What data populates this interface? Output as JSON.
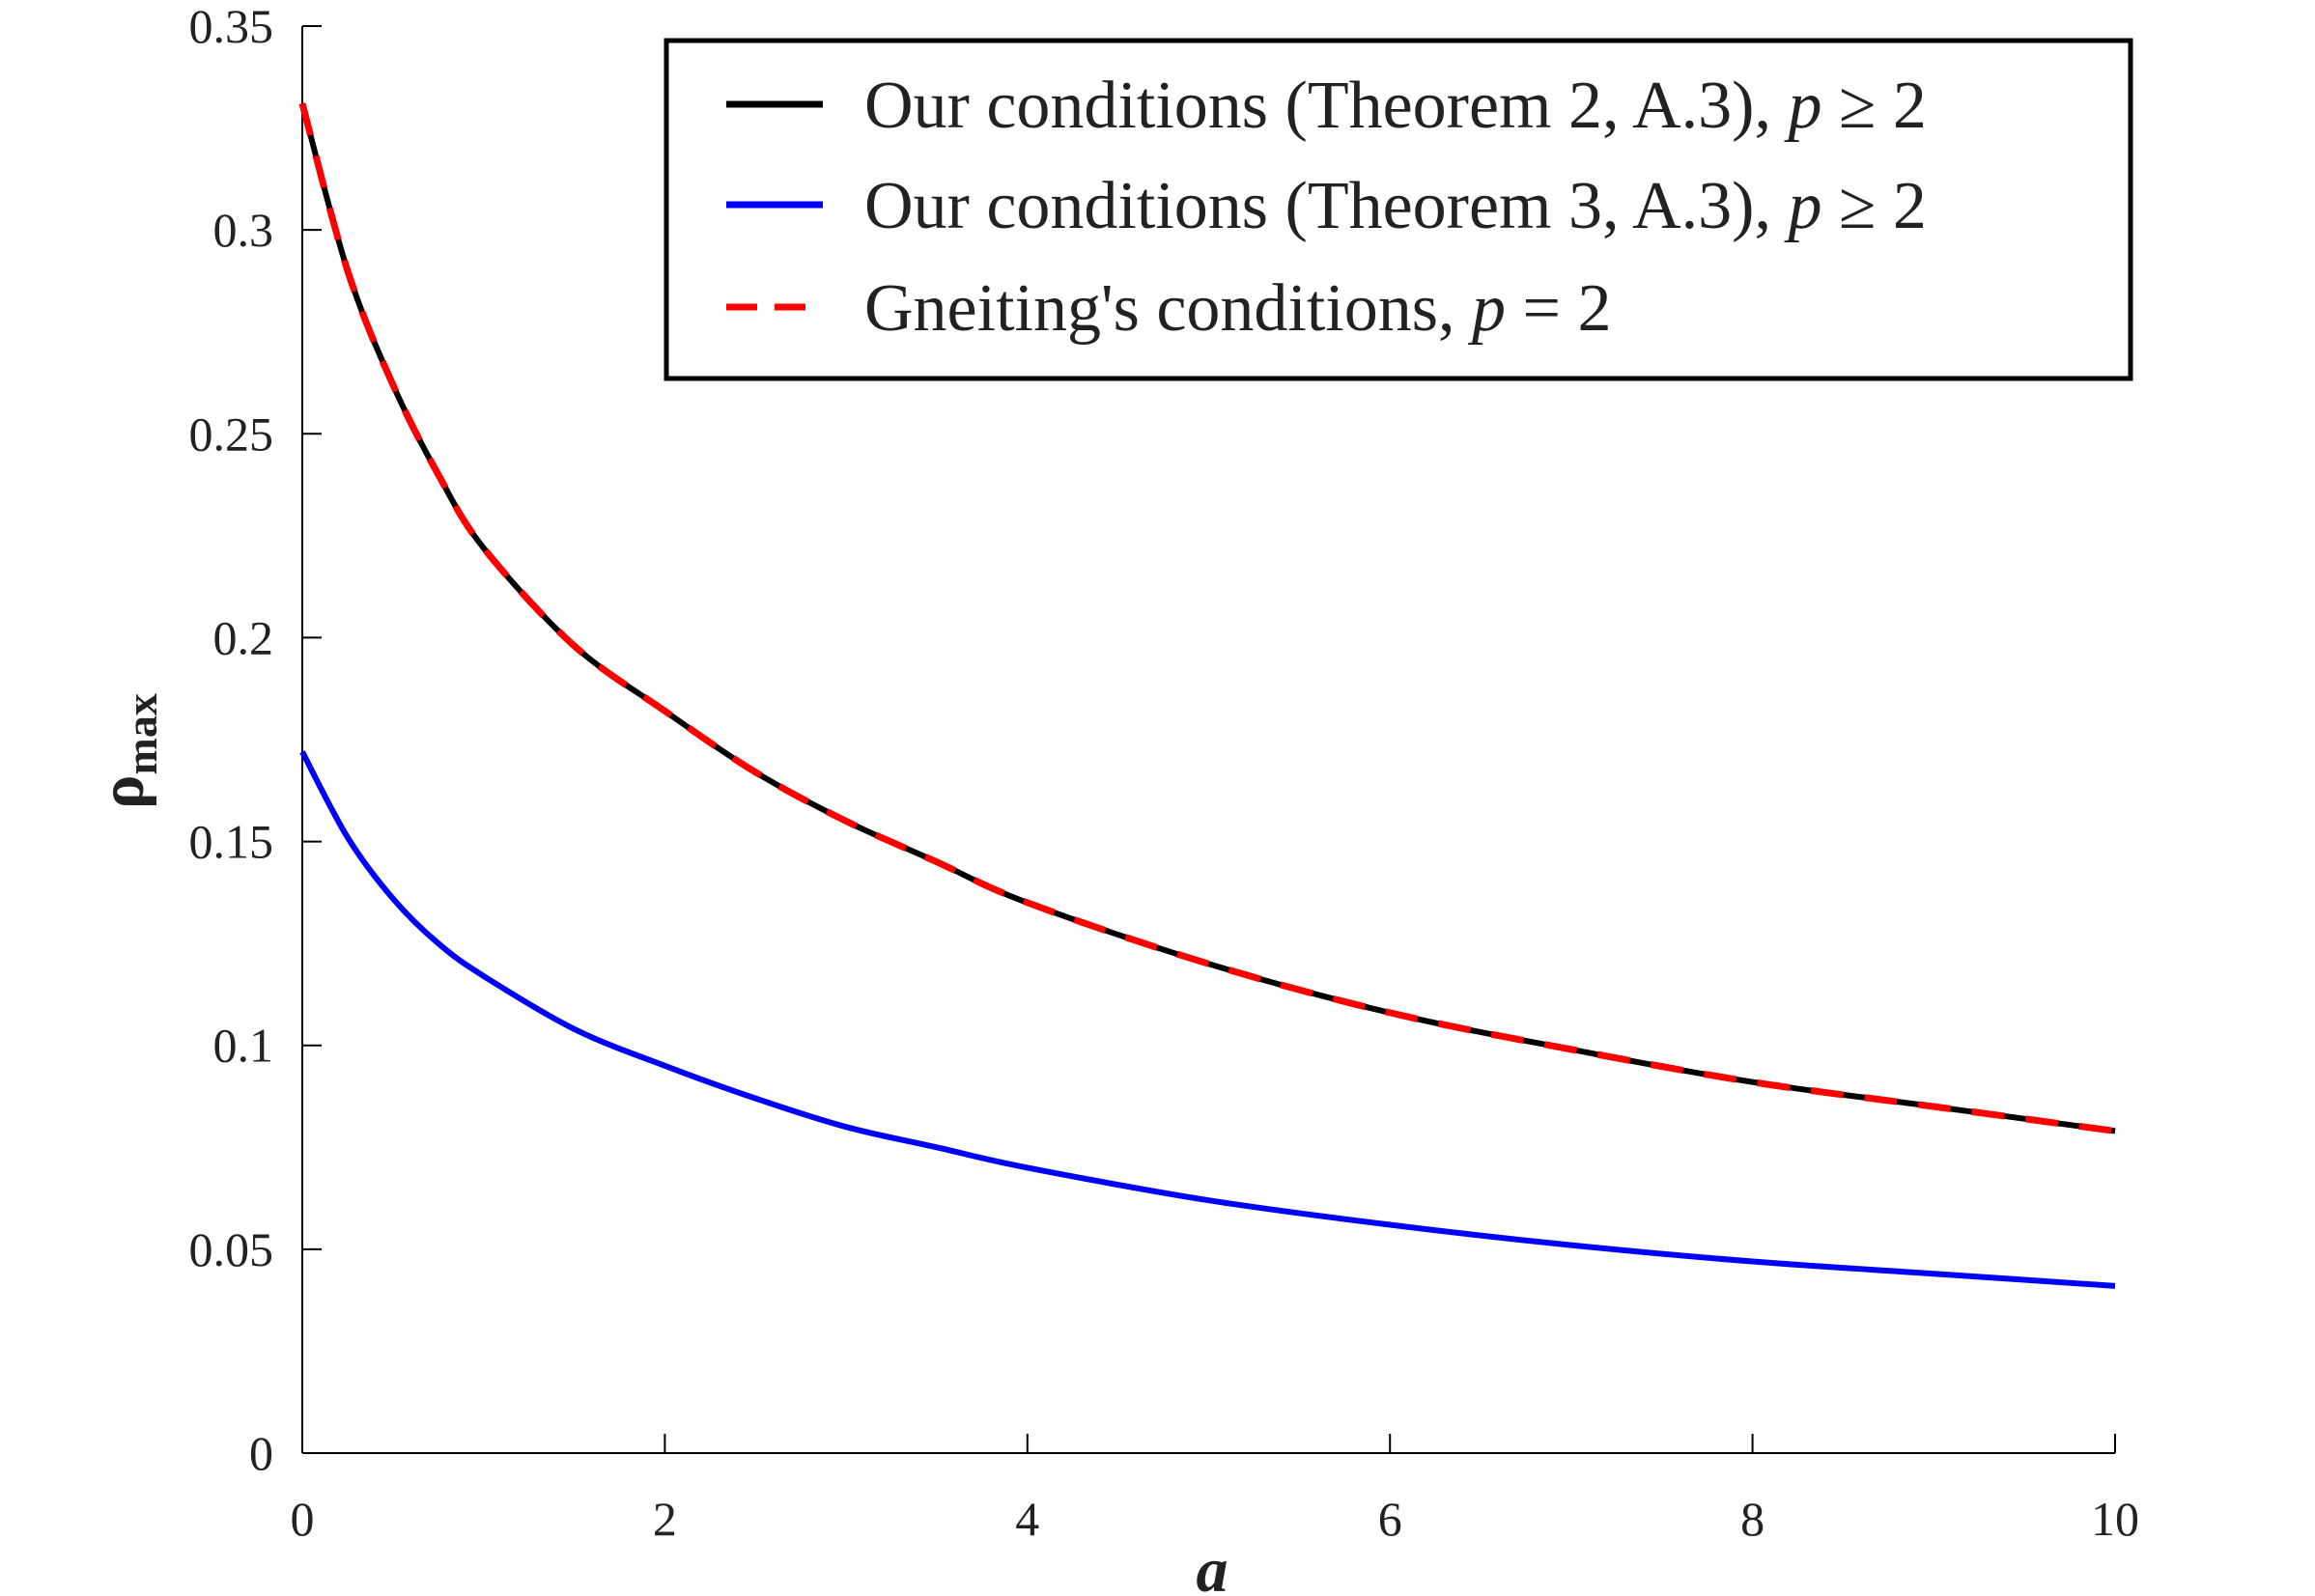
{
  "chart_data": {
    "type": "line",
    "title": "",
    "xlabel": "a",
    "ylabel": "ρ",
    "ylabel_sub": "max",
    "xlim": [
      0,
      10
    ],
    "ylim": [
      0,
      0.35
    ],
    "x_ticks": [
      0,
      2,
      4,
      6,
      8,
      10
    ],
    "y_ticks": [
      0,
      0.05,
      0.1,
      0.15,
      0.2,
      0.25,
      0.3,
      0.35
    ],
    "x_tick_labels": [
      "0",
      "2",
      "4",
      "6",
      "8",
      "10"
    ],
    "y_tick_labels": [
      "0",
      "0.05",
      "0.1",
      "0.15",
      "0.2",
      "0.25",
      "0.3",
      "0.35"
    ],
    "grid": false,
    "legend_position": "top-right",
    "series": [
      {
        "legend": {
          "main": "Our conditions (Theorem 2, A.3),",
          "var": "p",
          "rel": " ≥ 2"
        },
        "color": "#000000",
        "style": "solid",
        "x": [
          0,
          0.25,
          0.5,
          0.75,
          1,
          1.5,
          2,
          2.5,
          3,
          3.5,
          4,
          5,
          6,
          7,
          8,
          9,
          10
        ],
        "y": [
          0.331,
          0.29,
          0.262,
          0.24,
          0.222,
          0.198,
          0.182,
          0.167,
          0.155,
          0.145,
          0.135,
          0.12,
          0.108,
          0.099,
          0.091,
          0.085,
          0.079
        ]
      },
      {
        "legend": {
          "main": "Our conditions (Theorem 3, A.3),",
          "var": "p",
          "rel": " ≥ 2"
        },
        "color": "#0000ff",
        "style": "solid",
        "x": [
          0,
          0.25,
          0.5,
          0.75,
          1,
          1.5,
          2,
          2.5,
          3,
          3.5,
          4,
          5,
          6,
          7,
          8,
          9,
          10
        ],
        "y": [
          0.172,
          0.151,
          0.136,
          0.125,
          0.117,
          0.104,
          0.095,
          0.087,
          0.08,
          0.075,
          0.07,
          0.062,
          0.056,
          0.051,
          0.047,
          0.044,
          0.041
        ]
      },
      {
        "legend": {
          "main": "Gneiting's conditions,",
          "var": "p",
          "rel": " = 2"
        },
        "color": "#ff0000",
        "style": "dashed",
        "x": [
          0,
          0.25,
          0.5,
          0.75,
          1,
          1.5,
          2,
          2.5,
          3,
          3.5,
          4,
          5,
          6,
          7,
          8,
          9,
          10
        ],
        "y": [
          0.331,
          0.29,
          0.262,
          0.24,
          0.222,
          0.198,
          0.182,
          0.167,
          0.155,
          0.145,
          0.135,
          0.12,
          0.108,
          0.099,
          0.091,
          0.085,
          0.079
        ]
      }
    ]
  }
}
